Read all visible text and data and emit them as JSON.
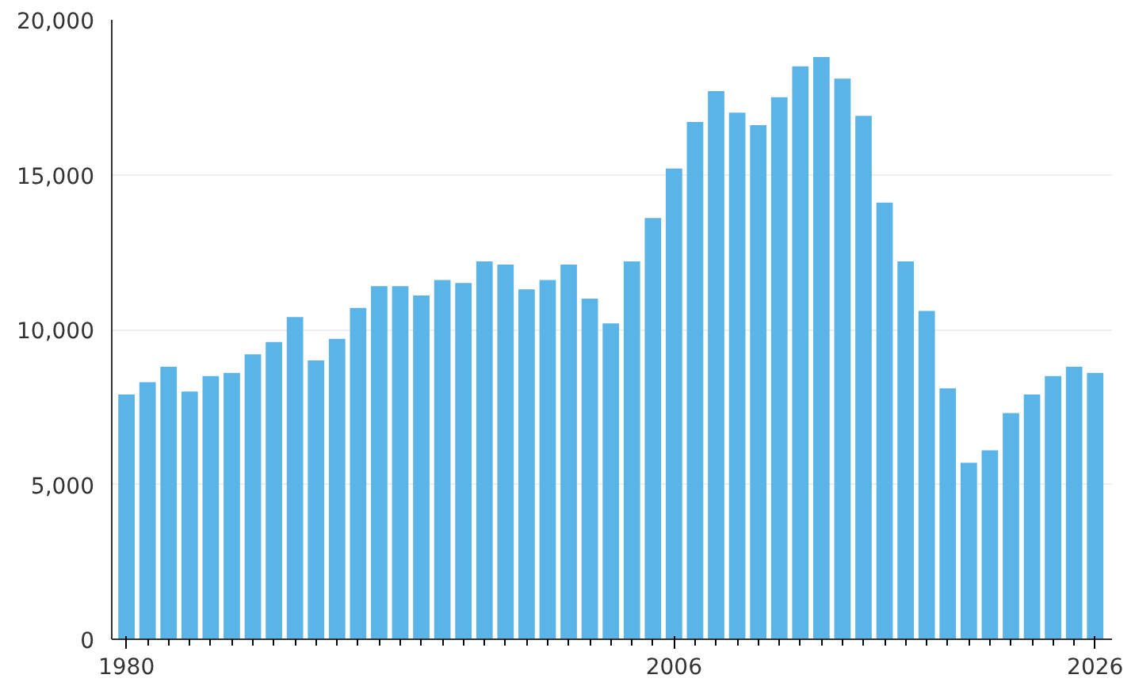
{
  "chart_data": {
    "type": "bar",
    "x": [
      1980,
      1981,
      1982,
      1983,
      1984,
      1985,
      1986,
      1987,
      1988,
      1989,
      1990,
      1991,
      1992,
      1993,
      1994,
      1995,
      1996,
      1997,
      1998,
      1999,
      2000,
      2001,
      2002,
      2003,
      2004,
      2005,
      2006,
      2007,
      2008,
      2009,
      2010,
      2011,
      2012,
      2013,
      2014,
      2015,
      2016,
      2017,
      2018,
      2019,
      2020,
      2021,
      2022,
      2023,
      2024,
      2025,
      2026
    ],
    "values": [
      7900,
      8300,
      8800,
      8000,
      8500,
      8600,
      9200,
      9600,
      10400,
      9000,
      9700,
      10700,
      11400,
      11400,
      11100,
      11600,
      11500,
      12200,
      12100,
      11300,
      11600,
      12100,
      11000,
      10200,
      12200,
      13600,
      15200,
      16700,
      17700,
      17000,
      16600,
      17500,
      18500,
      18800,
      18100,
      16900,
      14100,
      12200,
      10600,
      8100,
      5700,
      6100,
      7300,
      7900,
      8500,
      8800,
      8600
    ],
    "color": "#5ab4e8",
    "xlim": [
      1979.3,
      2026.8
    ],
    "xticks": [
      1980,
      2006,
      2026
    ],
    "ylim": [
      0,
      20000
    ],
    "yticks": [
      {
        "value": 0,
        "label": "0"
      },
      {
        "value": 5000,
        "label": "5,000"
      },
      {
        "value": 10000,
        "label": "10,000"
      },
      {
        "value": 15000,
        "label": "15,000"
      },
      {
        "value": 20000,
        "label": "20,000"
      }
    ],
    "grid": "y"
  }
}
